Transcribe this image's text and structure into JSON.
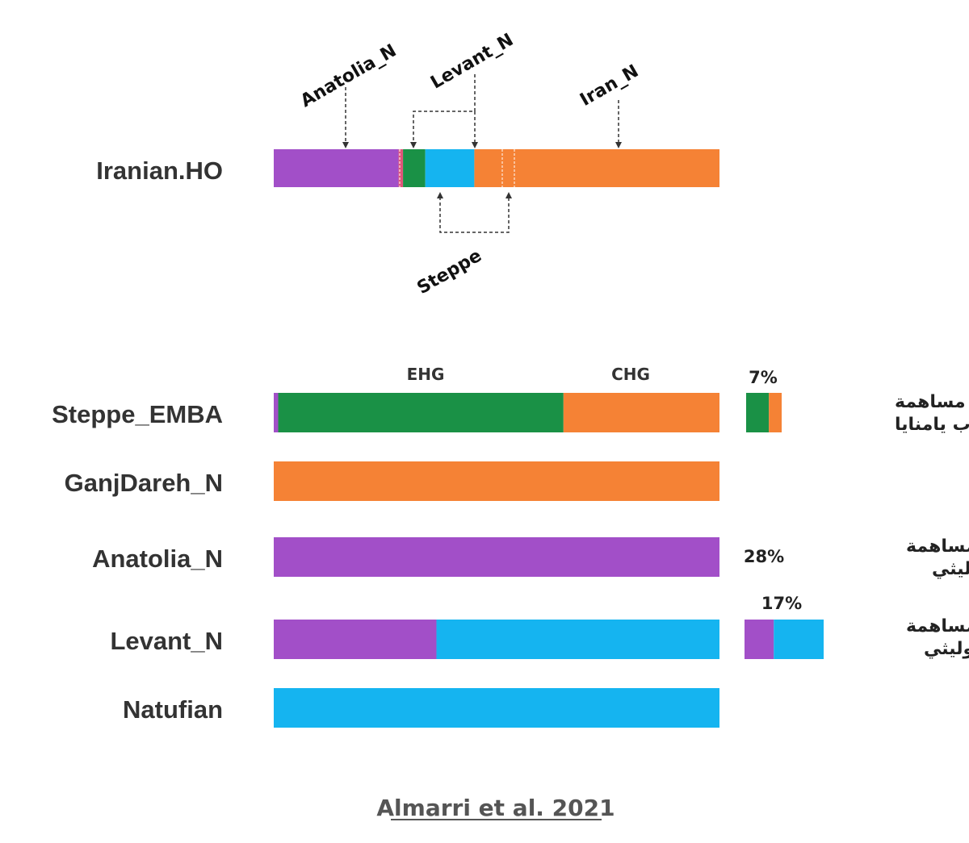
{
  "colors": {
    "Anatolia_N": "#a24fc8",
    "Steppe": "#1a9146",
    "Levant_N": "#15b4f0",
    "Iran_N": "#f58235",
    "pink": "#e0557a"
  },
  "chart_data": {
    "type": "stacked-bar",
    "orientation": "horizontal",
    "top": {
      "row": "Iranian.HO",
      "components": [
        {
          "source": "Anatolia_N",
          "value": 0.28
        },
        {
          "source": "pink",
          "value": 0.01
        },
        {
          "source": "Steppe",
          "value": 0.05
        },
        {
          "source": "Levant_N",
          "value": 0.11
        },
        {
          "source": "Iran_N",
          "value": 0.55
        }
      ],
      "source_labels": [
        "Anatolia_N",
        "Levant_N",
        "Iran_N",
        "Steppe"
      ]
    },
    "rows": [
      {
        "label": "Steppe_EMBA",
        "components": [
          {
            "source": "Anatolia_N",
            "value": 0.01
          },
          {
            "source": "Steppe",
            "value": 0.64
          },
          {
            "source": "Iran_N",
            "value": 0.35
          }
        ]
      },
      {
        "label": "GanjDareh_N",
        "components": [
          {
            "source": "Iran_N",
            "value": 1.0
          }
        ]
      },
      {
        "label": "Anatolia_N",
        "components": [
          {
            "source": "Anatolia_N",
            "value": 1.0
          }
        ]
      },
      {
        "label": "Levant_N",
        "components": [
          {
            "source": "Anatolia_N",
            "value": 0.365
          },
          {
            "source": "Levant_N",
            "value": 0.635
          }
        ]
      },
      {
        "label": "Natufian",
        "components": [
          {
            "source": "Levant_N",
            "value": 1.0
          }
        ]
      }
    ],
    "component_labels": [
      "EHG",
      "CHG"
    ],
    "contributions": [
      {
        "row": "Steppe_EMBA",
        "percent": "7%",
        "label_line1": "مساهمة",
        "label_line2": "سهوب يامنايا",
        "box": [
          {
            "source": "Steppe",
            "value": 0.64
          },
          {
            "source": "Iran_N",
            "value": 0.36
          }
        ]
      },
      {
        "row": "Anatolia_N",
        "percent": "28%",
        "label_line1": "مساهمة",
        "label_line2": "الأناضول النيوليثي",
        "box": []
      },
      {
        "row": "Levant_N",
        "percent": "17%",
        "label_line1": "مساهمة",
        "label_line2": "الشام النيوليثي",
        "box": [
          {
            "source": "Anatolia_N",
            "value": 0.37
          },
          {
            "source": "Levant_N",
            "value": 0.63
          }
        ]
      }
    ],
    "citation": "Almarri et al. 2021"
  }
}
